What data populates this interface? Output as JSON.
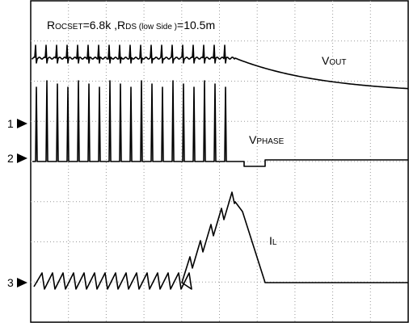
{
  "annotation": {
    "parts": [
      "R",
      "OCSET",
      "=6.8k  ,R",
      "DS (low Side )",
      "=10.5m"
    ]
  },
  "traces": [
    {
      "name": "V",
      "sub": "OUT"
    },
    {
      "name": "V",
      "sub": "PHASE"
    },
    {
      "name": "I",
      "sub": "L"
    }
  ],
  "channels": [
    "1",
    "2",
    "3"
  ]
}
